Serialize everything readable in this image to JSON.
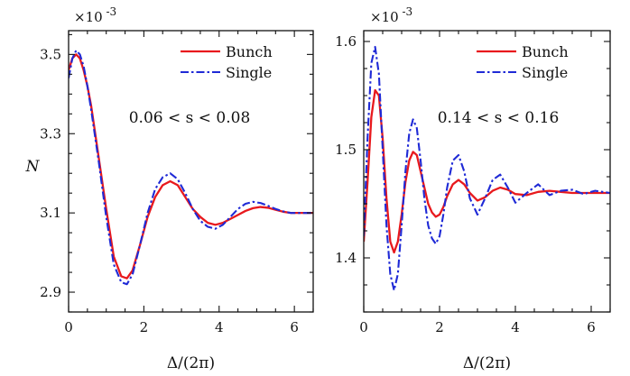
{
  "chart_data": [
    {
      "type": "line",
      "ylabel": "N",
      "xlabel": "Δ/(2π)",
      "multiplier": "×10",
      "multiplier_exp": "-3",
      "annotation": "0.06 < s < 0.08",
      "xlim": [
        0,
        6.5
      ],
      "ylim": [
        2.85,
        3.56
      ],
      "xticks": [
        0,
        2,
        4,
        6
      ],
      "xtick_labels": [
        "0",
        "2",
        "4",
        "6"
      ],
      "yticks": [
        2.9,
        3.1,
        3.3,
        3.5
      ],
      "ytick_labels": [
        "2.9",
        "3.1",
        "3.3",
        "3.5"
      ],
      "legend_position": "top-right",
      "colors": {
        "Bunch": "#e8191d",
        "Single": "#1f2ad6"
      },
      "series": [
        {
          "name": "Bunch",
          "style": "solid",
          "x": [
            0,
            0.1,
            0.2,
            0.3,
            0.4,
            0.5,
            0.6,
            0.8,
            1.0,
            1.2,
            1.4,
            1.55,
            1.7,
            1.9,
            2.1,
            2.3,
            2.5,
            2.7,
            2.9,
            3.1,
            3.3,
            3.5,
            3.7,
            3.9,
            4.1,
            4.3,
            4.5,
            4.7,
            4.9,
            5.1,
            5.3,
            5.5,
            5.7,
            5.9,
            6.1,
            6.3,
            6.5
          ],
          "y": [
            3.46,
            3.49,
            3.5,
            3.49,
            3.46,
            3.42,
            3.37,
            3.24,
            3.11,
            2.99,
            2.94,
            2.935,
            2.955,
            3.02,
            3.09,
            3.14,
            3.17,
            3.18,
            3.17,
            3.14,
            3.11,
            3.09,
            3.075,
            3.07,
            3.075,
            3.085,
            3.095,
            3.105,
            3.112,
            3.115,
            3.113,
            3.108,
            3.103,
            3.1,
            3.1,
            3.1,
            3.1
          ]
        },
        {
          "name": "Single",
          "style": "dashdot",
          "x": [
            0,
            0.1,
            0.2,
            0.3,
            0.4,
            0.5,
            0.6,
            0.8,
            1.0,
            1.2,
            1.4,
            1.55,
            1.7,
            1.9,
            2.1,
            2.3,
            2.5,
            2.7,
            2.9,
            3.1,
            3.3,
            3.5,
            3.7,
            3.9,
            4.1,
            4.3,
            4.5,
            4.7,
            4.9,
            5.1,
            5.3,
            5.5,
            5.7,
            5.9,
            6.1,
            6.3,
            6.5
          ],
          "y": [
            3.44,
            3.49,
            3.51,
            3.5,
            3.47,
            3.42,
            3.36,
            3.23,
            3.09,
            2.97,
            2.925,
            2.92,
            2.945,
            3.02,
            3.1,
            3.16,
            3.19,
            3.2,
            3.185,
            3.15,
            3.11,
            3.08,
            3.065,
            3.06,
            3.07,
            3.09,
            3.11,
            3.123,
            3.128,
            3.125,
            3.118,
            3.11,
            3.104,
            3.1,
            3.1,
            3.1,
            3.1
          ]
        }
      ]
    },
    {
      "type": "line",
      "ylabel": "",
      "xlabel": "Δ/(2π)",
      "multiplier": "×10",
      "multiplier_exp": "-3",
      "annotation": "0.14 < s < 0.16",
      "xlim": [
        0,
        6.5
      ],
      "ylim": [
        1.35,
        1.61
      ],
      "xticks": [
        0,
        2,
        4,
        6
      ],
      "xtick_labels": [
        "0",
        "2",
        "4",
        "6"
      ],
      "yticks": [
        1.4,
        1.5,
        1.6
      ],
      "ytick_labels": [
        "1.4",
        "1.5",
        "1.6"
      ],
      "legend_position": "top-right",
      "colors": {
        "Bunch": "#e8191d",
        "Single": "#1f2ad6"
      },
      "series": [
        {
          "name": "Bunch",
          "style": "solid",
          "x": [
            0,
            0.1,
            0.2,
            0.3,
            0.4,
            0.5,
            0.6,
            0.7,
            0.8,
            0.9,
            1.0,
            1.1,
            1.2,
            1.3,
            1.4,
            1.5,
            1.6,
            1.7,
            1.8,
            1.9,
            2.0,
            2.1,
            2.2,
            2.35,
            2.5,
            2.65,
            2.8,
            3.0,
            3.2,
            3.4,
            3.6,
            3.8,
            4.0,
            4.3,
            4.6,
            4.9,
            5.2,
            5.5,
            5.8,
            6.1,
            6.5
          ],
          "y": [
            1.415,
            1.47,
            1.53,
            1.555,
            1.55,
            1.51,
            1.455,
            1.415,
            1.405,
            1.415,
            1.44,
            1.47,
            1.49,
            1.498,
            1.495,
            1.48,
            1.465,
            1.45,
            1.442,
            1.438,
            1.44,
            1.447,
            1.457,
            1.468,
            1.472,
            1.468,
            1.46,
            1.453,
            1.456,
            1.462,
            1.465,
            1.463,
            1.459,
            1.458,
            1.461,
            1.462,
            1.461,
            1.46,
            1.46,
            1.46,
            1.46
          ]
        },
        {
          "name": "Single",
          "style": "dashdot",
          "x": [
            0,
            0.1,
            0.2,
            0.3,
            0.4,
            0.5,
            0.6,
            0.7,
            0.8,
            0.9,
            1.0,
            1.1,
            1.2,
            1.3,
            1.4,
            1.5,
            1.6,
            1.7,
            1.8,
            1.9,
            2.0,
            2.1,
            2.2,
            2.35,
            2.5,
            2.65,
            2.8,
            3.0,
            3.2,
            3.4,
            3.6,
            3.8,
            4.0,
            4.3,
            4.6,
            4.9,
            5.2,
            5.5,
            5.8,
            6.1,
            6.5
          ],
          "y": [
            1.42,
            1.51,
            1.58,
            1.595,
            1.57,
            1.5,
            1.43,
            1.385,
            1.37,
            1.385,
            1.43,
            1.48,
            1.515,
            1.528,
            1.52,
            1.49,
            1.455,
            1.43,
            1.418,
            1.413,
            1.42,
            1.44,
            1.465,
            1.49,
            1.495,
            1.48,
            1.455,
            1.44,
            1.455,
            1.472,
            1.477,
            1.465,
            1.451,
            1.46,
            1.468,
            1.458,
            1.462,
            1.463,
            1.459,
            1.462,
            1.46
          ]
        }
      ]
    }
  ]
}
